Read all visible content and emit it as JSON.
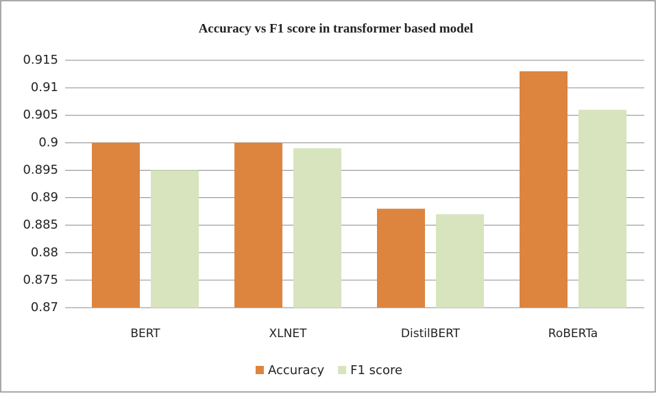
{
  "chart_data": {
    "type": "bar",
    "title": "Accuracy vs F1 score in transformer based model",
    "categories": [
      "BERT",
      "XLNET",
      "DistilBERT",
      "RoBERTa"
    ],
    "series": [
      {
        "name": "Accuracy",
        "color": "#dd843f",
        "values": [
          0.9,
          0.9,
          0.888,
          0.913
        ]
      },
      {
        "name": "F1 score",
        "color": "#d7e4bd",
        "values": [
          0.895,
          0.899,
          0.887,
          0.906
        ]
      }
    ],
    "ylim": [
      0.87,
      0.915
    ],
    "yticks": [
      0.87,
      0.875,
      0.88,
      0.885,
      0.89,
      0.895,
      0.9,
      0.905,
      0.91,
      0.915
    ],
    "grid": true,
    "legend": "bottom"
  }
}
